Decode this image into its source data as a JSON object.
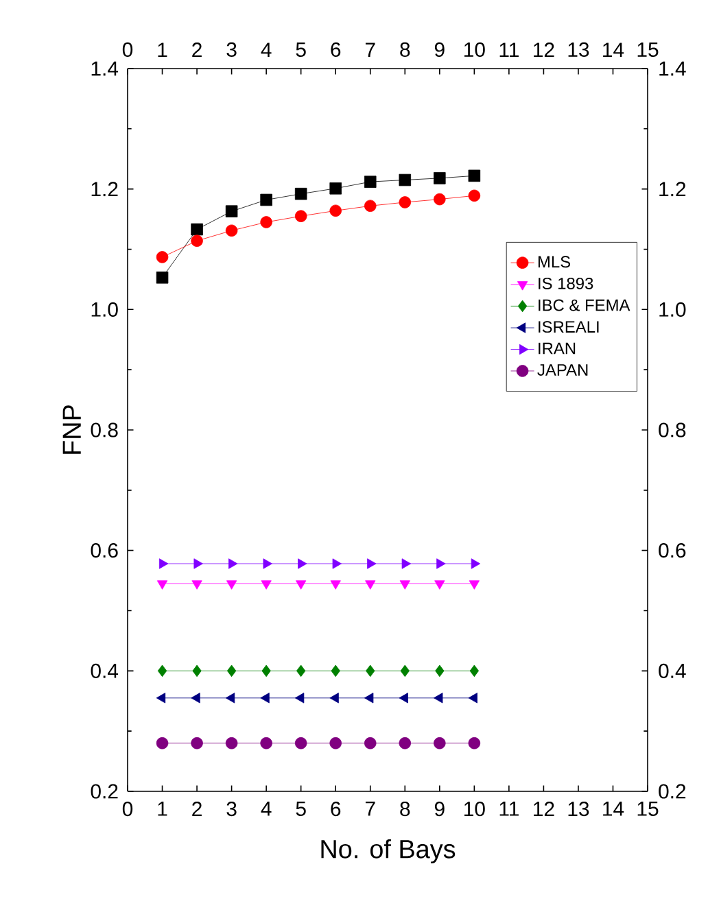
{
  "chart_data": {
    "type": "line",
    "xlabel": "No. of Bays",
    "ylabel": "FNP",
    "x": [
      1,
      2,
      3,
      4,
      5,
      6,
      7,
      8,
      9,
      10
    ],
    "series": [
      {
        "color": "#000000",
        "marker": "square",
        "values": [
          1.053,
          1.133,
          1.163,
          1.182,
          1.192,
          1.201,
          1.212,
          1.215,
          1.218,
          1.222
        ]
      },
      {
        "name": "MLS",
        "color": "#ff0000",
        "marker": "circle",
        "values": [
          1.087,
          1.114,
          1.131,
          1.145,
          1.155,
          1.164,
          1.172,
          1.178,
          1.183,
          1.189
        ]
      },
      {
        "name": "IS 1893",
        "color": "#ff00ff",
        "marker": "triangle-down",
        "values": [
          0.545,
          0.545,
          0.545,
          0.545,
          0.545,
          0.545,
          0.545,
          0.545,
          0.545,
          0.545
        ]
      },
      {
        "name": "IBC & FEMA",
        "color": "#008000",
        "marker": "diamond",
        "values": [
          0.4,
          0.4,
          0.4,
          0.4,
          0.4,
          0.4,
          0.4,
          0.4,
          0.4,
          0.4
        ]
      },
      {
        "name": "ISREALI",
        "color": "#000080",
        "marker": "triangle-left",
        "values": [
          0.355,
          0.355,
          0.355,
          0.355,
          0.355,
          0.355,
          0.355,
          0.355,
          0.355,
          0.355
        ]
      },
      {
        "name": "IRAN",
        "color": "#8000ff",
        "marker": "triangle-right",
        "values": [
          0.578,
          0.578,
          0.578,
          0.578,
          0.578,
          0.578,
          0.578,
          0.578,
          0.578,
          0.578
        ]
      },
      {
        "name": "JAPAN",
        "color": "#800080",
        "marker": "circle",
        "values": [
          0.28,
          0.28,
          0.28,
          0.28,
          0.28,
          0.28,
          0.28,
          0.28,
          0.28,
          0.28
        ]
      }
    ],
    "xlim": [
      0,
      15
    ],
    "xticks": [
      0,
      1,
      2,
      3,
      4,
      5,
      6,
      7,
      8,
      9,
      10,
      11,
      12,
      13,
      14,
      15
    ],
    "x2lim": [
      0,
      15
    ],
    "x2ticks": [
      0,
      1,
      2,
      3,
      4,
      5,
      6,
      7,
      8,
      9,
      10,
      11,
      12,
      13,
      14,
      15
    ],
    "ylim": [
      0.2,
      1.4
    ],
    "yticks": [
      0.2,
      0.4,
      0.6,
      0.8,
      {
        "value": 1,
        "label": "1.0"
      },
      1.2,
      1.4
    ],
    "y2lim": [
      0.2,
      1.4
    ],
    "y2ticks": [
      0.2,
      0.4,
      0.6,
      0.8,
      {
        "value": 1,
        "label": "1.0"
      },
      1.2,
      1.4
    ],
    "grid": false,
    "legend": "right",
    "line_style": "solid"
  }
}
